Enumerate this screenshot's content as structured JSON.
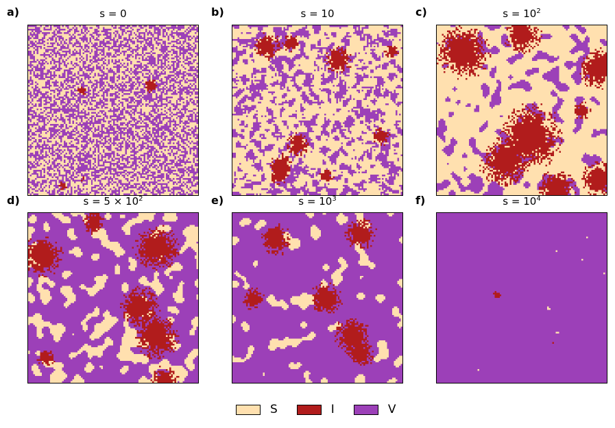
{
  "colors": {
    "S": "#FFE0AF",
    "I": "#B11C1C",
    "V": "#9C40B8"
  },
  "panels": [
    {
      "letter": "a)",
      "title_base": "s = 0",
      "title_exp": "",
      "state": "random"
    },
    {
      "letter": "b)",
      "title_base": "s = 10",
      "title_exp": "",
      "state": "early"
    },
    {
      "letter": "c)",
      "title_base": "s = 10",
      "title_exp": "2",
      "state": "mid"
    },
    {
      "letter": "d)",
      "title_base": "s = 5 × 10",
      "title_exp": "2",
      "state": "late"
    },
    {
      "letter": "e)",
      "title_base": "s = 10",
      "title_exp": "3",
      "state": "later"
    },
    {
      "letter": "f)",
      "title_base": "s = 10",
      "title_exp": "4",
      "state": "final"
    }
  ],
  "legend": [
    {
      "label": "S",
      "color": "#FFE0AF"
    },
    {
      "label": "I",
      "color": "#B11C1C"
    },
    {
      "label": "V",
      "color": "#9C40B8"
    }
  ],
  "chart_data": [
    {
      "type": "heatmap",
      "title": "s = 0",
      "categories": [
        "S",
        "I",
        "V"
      ]
    },
    {
      "type": "heatmap",
      "title": "s = 10",
      "categories": [
        "S",
        "I",
        "V"
      ]
    },
    {
      "type": "heatmap",
      "title": "s = 10^2",
      "categories": [
        "S",
        "I",
        "V"
      ]
    },
    {
      "type": "heatmap",
      "title": "s = 5 × 10^2",
      "categories": [
        "S",
        "I",
        "V"
      ]
    },
    {
      "type": "heatmap",
      "title": "s = 10^3",
      "categories": [
        "S",
        "I",
        "V"
      ]
    },
    {
      "type": "heatmap",
      "title": "s = 10^4",
      "categories": [
        "S",
        "I",
        "V"
      ]
    }
  ]
}
